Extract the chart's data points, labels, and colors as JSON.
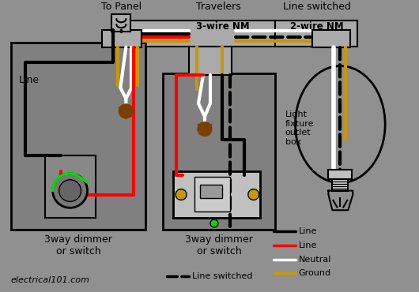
{
  "bg_color": "#909090",
  "colors": {
    "black": "#000000",
    "red": "#ff0000",
    "white": "#ffffff",
    "gold": "#c8960c",
    "green": "#00dd00",
    "brown": "#7B3F00",
    "box_gray": "#808080",
    "connector_gray": "#aaaaaa",
    "switch_light": "#c0c0c0",
    "switch_dark": "#888888"
  },
  "labels": {
    "to_panel": "To Panel",
    "travelers": "Travelers",
    "line_switched": "Line switched",
    "wire_nm_3": "3-wire NM",
    "wire_nm_2": "2-wire NM",
    "switch1": "3way dimmer\nor switch",
    "switch2": "3way dimmer\nor switch",
    "light_box": "Light\nfixture\noutlet\nbox",
    "website": "electrical101.com",
    "leg_black": "Line",
    "leg_red": "Line",
    "leg_white": "Neutral",
    "leg_gold": "Ground",
    "leg_dashed": "Line switched",
    "line_label": "Line"
  }
}
